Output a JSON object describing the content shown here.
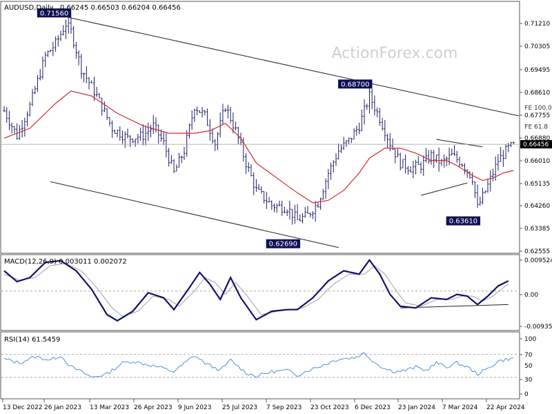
{
  "symbol": "AUDUSD",
  "timeframe": "Daily",
  "ohlc_text": "0.66245 0.66503 0.66204 0.66456",
  "watermark": "ActionForex.com",
  "colors": {
    "candle": "#1a1a66",
    "ma": "#cc2b2b",
    "channel": "#222222",
    "macd": "#10106b",
    "signal": "#a0a0a0",
    "rsi": "#4d8fd6",
    "grid": "#cfcfcf",
    "label_bg": "#0f0f55"
  },
  "chart_data": [
    {
      "type": "candlestick",
      "title": "AUDUSD,Daily",
      "ylim": [
        0.621,
        0.7215
      ],
      "y_ticks": [
        "0.71210",
        "0.70305",
        "0.69495",
        "0.68610",
        "0.67755",
        "0.66880",
        "0.66010",
        "0.65135",
        "0.64260",
        "0.63385",
        "0.62555"
      ],
      "current_price": "0.66456",
      "x_ticks": [
        "13 Dec 2022",
        "26 Jan 2023",
        "13 Mar 2023",
        "26 Apr 2023",
        "9 Jun 2023",
        "25 Jul 2023",
        "7 Sep 2023",
        "23 Oct 2023",
        "6 Dec 2023",
        "23 Jan 2024",
        "7 Mar 2024",
        "22 Apr 2024"
      ],
      "annotations": [
        {
          "label": "0.71560",
          "day": 25,
          "price": 0.7156
        },
        {
          "label": "0.68700",
          "day": 142,
          "price": 0.687
        },
        {
          "label": "0.62690",
          "day": 114,
          "price": 0.6269
        },
        {
          "label": "0.63610",
          "day": 184,
          "price": 0.6361
        },
        {
          "label": "FE 100.0",
          "day": 198,
          "price": 0.6785
        },
        {
          "label": "FE 61.8",
          "day": 198,
          "price": 0.6708
        }
      ],
      "close_path": [
        [
          0,
          0.678
        ],
        [
          5,
          0.668
        ],
        [
          10,
          0.68
        ],
        [
          16,
          0.7
        ],
        [
          20,
          0.705
        ],
        [
          24,
          0.713
        ],
        [
          26,
          0.71
        ],
        [
          30,
          0.695
        ],
        [
          36,
          0.684
        ],
        [
          42,
          0.671
        ],
        [
          48,
          0.667
        ],
        [
          54,
          0.668
        ],
        [
          58,
          0.672
        ],
        [
          62,
          0.665
        ],
        [
          66,
          0.653
        ],
        [
          70,
          0.662
        ],
        [
          74,
          0.68
        ],
        [
          78,
          0.676
        ],
        [
          82,
          0.665
        ],
        [
          86,
          0.68
        ],
        [
          90,
          0.67
        ],
        [
          94,
          0.657
        ],
        [
          98,
          0.646
        ],
        [
          104,
          0.64
        ],
        [
          110,
          0.639
        ],
        [
          114,
          0.634
        ],
        [
          118,
          0.636
        ],
        [
          122,
          0.641
        ],
        [
          126,
          0.653
        ],
        [
          130,
          0.662
        ],
        [
          134,
          0.666
        ],
        [
          138,
          0.672
        ],
        [
          142,
          0.684
        ],
        [
          146,
          0.675
        ],
        [
          150,
          0.665
        ],
        [
          154,
          0.657
        ],
        [
          158,
          0.655
        ],
        [
          162,
          0.656
        ],
        [
          166,
          0.66
        ],
        [
          170,
          0.657
        ],
        [
          174,
          0.66
        ],
        [
          178,
          0.657
        ],
        [
          182,
          0.651
        ],
        [
          184,
          0.639
        ],
        [
          188,
          0.648
        ],
        [
          192,
          0.658
        ],
        [
          196,
          0.663
        ],
        [
          198,
          0.664
        ]
      ],
      "ma_path": [
        [
          0,
          0.667
        ],
        [
          10,
          0.671
        ],
        [
          20,
          0.681
        ],
        [
          26,
          0.686
        ],
        [
          34,
          0.684
        ],
        [
          44,
          0.677
        ],
        [
          54,
          0.672
        ],
        [
          64,
          0.669
        ],
        [
          74,
          0.669
        ],
        [
          80,
          0.67
        ],
        [
          86,
          0.673
        ],
        [
          92,
          0.667
        ],
        [
          98,
          0.657
        ],
        [
          106,
          0.651
        ],
        [
          114,
          0.645
        ],
        [
          120,
          0.641
        ],
        [
          126,
          0.642
        ],
        [
          132,
          0.646
        ],
        [
          138,
          0.653
        ],
        [
          142,
          0.659
        ],
        [
          148,
          0.663
        ],
        [
          154,
          0.663
        ],
        [
          160,
          0.661
        ],
        [
          166,
          0.658
        ],
        [
          172,
          0.658
        ],
        [
          176,
          0.656
        ],
        [
          182,
          0.652
        ],
        [
          186,
          0.65
        ],
        [
          190,
          0.651
        ],
        [
          194,
          0.653
        ],
        [
          198,
          0.654
        ]
      ],
      "trendlines": [
        {
          "name": "channel-upper",
          "from": [
            25,
            0.7156
          ],
          "to": [
            210,
            0.676
          ]
        },
        {
          "name": "channel-lower",
          "from": [
            18,
            0.6495
          ],
          "to": [
            130,
            0.623
          ]
        },
        {
          "name": "triangle-top",
          "from": [
            168,
            0.6665
          ],
          "to": [
            186,
            0.6635
          ]
        },
        {
          "name": "triangle-bottom",
          "from": [
            162,
            0.644
          ],
          "to": [
            180,
            0.649
          ]
        }
      ]
    },
    {
      "type": "line",
      "title": "MACD(12,26,9) 0.003011 0.002072",
      "ylim": [
        -0.0115,
        0.0106
      ],
      "y_ticks": [
        "0.009524",
        "0.00",
        "-0.00935"
      ],
      "series": [
        {
          "name": "MACD",
          "values": [
            [
              0,
              0.006
            ],
            [
              5,
              0.0028
            ],
            [
              10,
              0.004
            ],
            [
              16,
              0.0085
            ],
            [
              22,
              0.009
            ],
            [
              28,
              0.006
            ],
            [
              34,
              0.0005
            ],
            [
              40,
              -0.007
            ],
            [
              44,
              -0.0088
            ],
            [
              50,
              -0.006
            ],
            [
              56,
              -0.0005
            ],
            [
              62,
              -0.002
            ],
            [
              66,
              -0.0055
            ],
            [
              72,
              0.001
            ],
            [
              76,
              0.0055
            ],
            [
              80,
              0.002
            ],
            [
              84,
              -0.0025
            ],
            [
              88,
              0.004
            ],
            [
              92,
              -0.002
            ],
            [
              98,
              -0.0085
            ],
            [
              104,
              -0.006
            ],
            [
              110,
              -0.0055
            ],
            [
              114,
              -0.0055
            ],
            [
              120,
              -0.002
            ],
            [
              126,
              0.003
            ],
            [
              132,
              0.006
            ],
            [
              138,
              0.005
            ],
            [
              142,
              0.0092
            ],
            [
              146,
              0.005
            ],
            [
              150,
              -0.001
            ],
            [
              154,
              -0.0045
            ],
            [
              160,
              -0.005
            ],
            [
              166,
              -0.002
            ],
            [
              172,
              -0.0025
            ],
            [
              176,
              -0.001
            ],
            [
              180,
              -0.0015
            ],
            [
              184,
              -0.004
            ],
            [
              188,
              -0.0015
            ],
            [
              192,
              0.0015
            ],
            [
              196,
              0.003
            ]
          ]
        },
        {
          "name": "Signal",
          "values": [
            [
              0,
              0.005
            ],
            [
              6,
              0.0032
            ],
            [
              12,
              0.004
            ],
            [
              18,
              0.0075
            ],
            [
              24,
              0.0082
            ],
            [
              30,
              0.006
            ],
            [
              36,
              0.001
            ],
            [
              42,
              -0.005
            ],
            [
              46,
              -0.0075
            ],
            [
              52,
              -0.006
            ],
            [
              58,
              -0.0015
            ],
            [
              64,
              -0.0025
            ],
            [
              68,
              -0.0045
            ],
            [
              74,
              0.0
            ],
            [
              78,
              0.004
            ],
            [
              82,
              0.0025
            ],
            [
              86,
              -0.001
            ],
            [
              90,
              0.0025
            ],
            [
              94,
              -0.001
            ],
            [
              100,
              -0.007
            ],
            [
              106,
              -0.006
            ],
            [
              112,
              -0.0055
            ],
            [
              116,
              -0.005
            ],
            [
              122,
              -0.0025
            ],
            [
              128,
              0.002
            ],
            [
              134,
              0.005
            ],
            [
              140,
              0.005
            ],
            [
              144,
              0.0075
            ],
            [
              148,
              0.005
            ],
            [
              152,
              0.0005
            ],
            [
              156,
              -0.0035
            ],
            [
              162,
              -0.0045
            ],
            [
              168,
              -0.0025
            ],
            [
              174,
              -0.0025
            ],
            [
              178,
              -0.0015
            ],
            [
              182,
              -0.0015
            ],
            [
              186,
              -0.003
            ],
            [
              190,
              -0.0015
            ],
            [
              194,
              0.001
            ],
            [
              196,
              0.0021
            ]
          ]
        }
      ],
      "trendlines": [
        {
          "name": "macd-support",
          "from": [
            154,
            -0.005
          ],
          "to": [
            196,
            -0.004
          ]
        }
      ]
    },
    {
      "type": "line",
      "title": "RSI(14) 61.5459",
      "ylim": [
        0,
        100
      ],
      "y_ticks": [
        "100",
        "70",
        "50",
        "30",
        "0"
      ],
      "series": [
        {
          "name": "RSI",
          "values": [
            [
              0,
              62
            ],
            [
              6,
              55
            ],
            [
              12,
              66
            ],
            [
              18,
              60
            ],
            [
              22,
              68
            ],
            [
              26,
              48
            ],
            [
              30,
              40
            ],
            [
              34,
              30
            ],
            [
              40,
              36
            ],
            [
              46,
              55
            ],
            [
              50,
              58
            ],
            [
              56,
              52
            ],
            [
              60,
              48
            ],
            [
              66,
              40
            ],
            [
              70,
              54
            ],
            [
              74,
              68
            ],
            [
              78,
              55
            ],
            [
              84,
              42
            ],
            [
              88,
              60
            ],
            [
              94,
              38
            ],
            [
              98,
              32
            ],
            [
              104,
              40
            ],
            [
              110,
              42
            ],
            [
              114,
              34
            ],
            [
              118,
              42
            ],
            [
              122,
              48
            ],
            [
              126,
              55
            ],
            [
              130,
              62
            ],
            [
              136,
              64
            ],
            [
              140,
              72
            ],
            [
              144,
              56
            ],
            [
              148,
              45
            ],
            [
              152,
              40
            ],
            [
              156,
              42
            ],
            [
              160,
              48
            ],
            [
              164,
              42
            ],
            [
              168,
              55
            ],
            [
              172,
              48
            ],
            [
              176,
              55
            ],
            [
              180,
              48
            ],
            [
              184,
              36
            ],
            [
              188,
              45
            ],
            [
              192,
              58
            ],
            [
              196,
              62
            ]
          ]
        }
      ]
    }
  ]
}
